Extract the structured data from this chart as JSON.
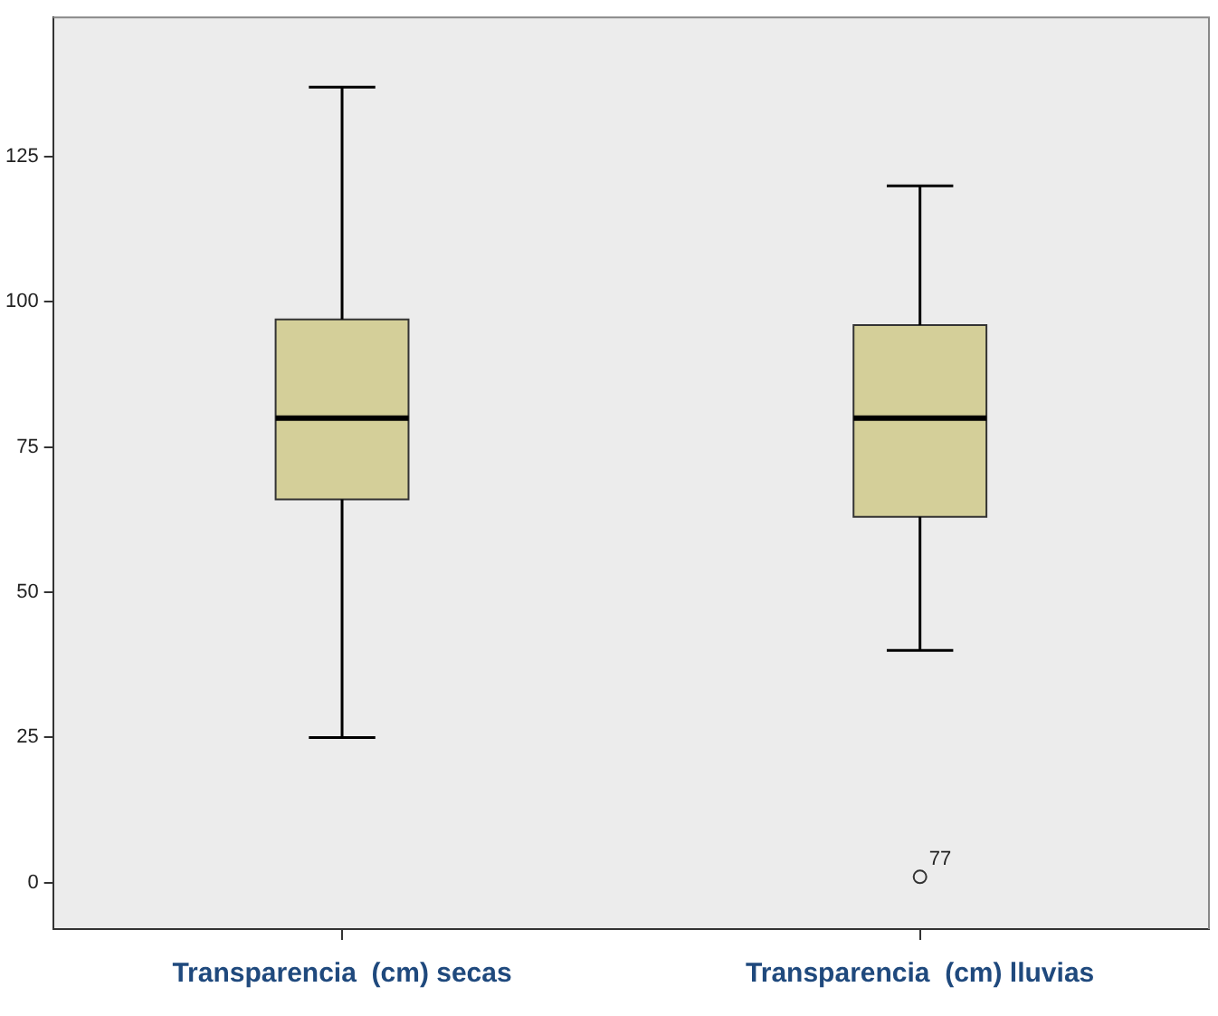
{
  "chart_data": {
    "type": "box",
    "categories": [
      "Transparencia  (cm) secas",
      "Transparencia  (cm) lluvias"
    ],
    "series": [
      {
        "color": "#d4cf99",
        "boxes": [
          {
            "low": 25,
            "q1": 66,
            "median": 80,
            "q3": 97,
            "high": 137
          },
          {
            "low": 40,
            "q1": 63,
            "median": 80,
            "q3": 96,
            "high": 120,
            "outliers": [
              1
            ]
          }
        ]
      }
    ],
    "ylim": [
      -8,
      149
    ],
    "yticks": [
      0,
      25,
      50,
      75,
      100,
      125
    ],
    "annotations": [
      "77"
    ]
  }
}
